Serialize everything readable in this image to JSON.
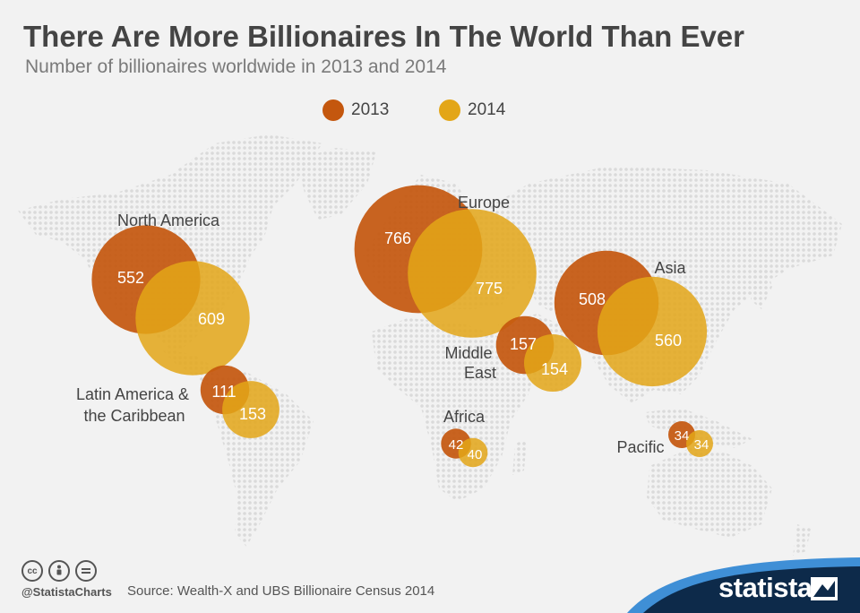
{
  "title": "There Are More Billionaires In The World Than Ever",
  "subtitle": "Number of billionaires worldwide in 2013 and 2014",
  "legend": [
    {
      "label": "2013",
      "color": "#c4570e"
    },
    {
      "label": "2014",
      "color": "#e3a617"
    }
  ],
  "chart_data": {
    "type": "bubble-map",
    "title": "There Are More Billionaires In The World Than Ever",
    "subtitle": "Number of billionaires worldwide in 2013 and 2014",
    "series": [
      {
        "name": "2013",
        "color": "#c4570e"
      },
      {
        "name": "2014",
        "color": "#e3a617"
      }
    ],
    "regions": [
      {
        "name": "North America",
        "values": [
          552,
          609
        ]
      },
      {
        "name": "Europe",
        "values": [
          766,
          775
        ]
      },
      {
        "name": "Asia",
        "values": [
          508,
          560
        ]
      },
      {
        "name": "Middle East",
        "values": [
          157,
          154
        ]
      },
      {
        "name": "Latin America & the Caribbean",
        "values": [
          111,
          153
        ]
      },
      {
        "name": "Africa",
        "values": [
          42,
          40
        ]
      },
      {
        "name": "Pacific",
        "values": [
          34,
          34
        ]
      }
    ],
    "legend_position": "top-center"
  },
  "footer": {
    "handle": "@StatistaCharts",
    "source": "Source: Wealth-X and UBS Billionaire Census 2014",
    "brand": "statista",
    "icons": [
      "cc-icon",
      "by-icon",
      "nd-icon"
    ]
  }
}
